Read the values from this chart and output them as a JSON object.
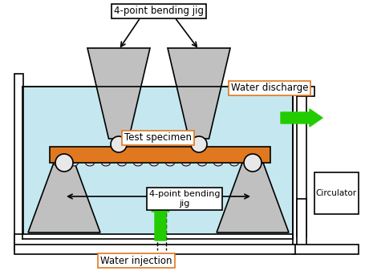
{
  "bg_color": "#ffffff",
  "water_color": "#c5e8f0",
  "specimen_color": "#e07820",
  "jig_color": "#c0c0c0",
  "arrow_green": "#22cc00",
  "line_color": "#000000",
  "labels": {
    "top_jig": "4-point bending jig",
    "test_specimen": "Test specimen",
    "bottom_jig": "4-point bending\njig",
    "water_injection": "Water injection",
    "water_discharge": "Water discharge",
    "circulator": "Circulator"
  },
  "figsize": [
    4.55,
    3.43
  ],
  "dpi": 100
}
